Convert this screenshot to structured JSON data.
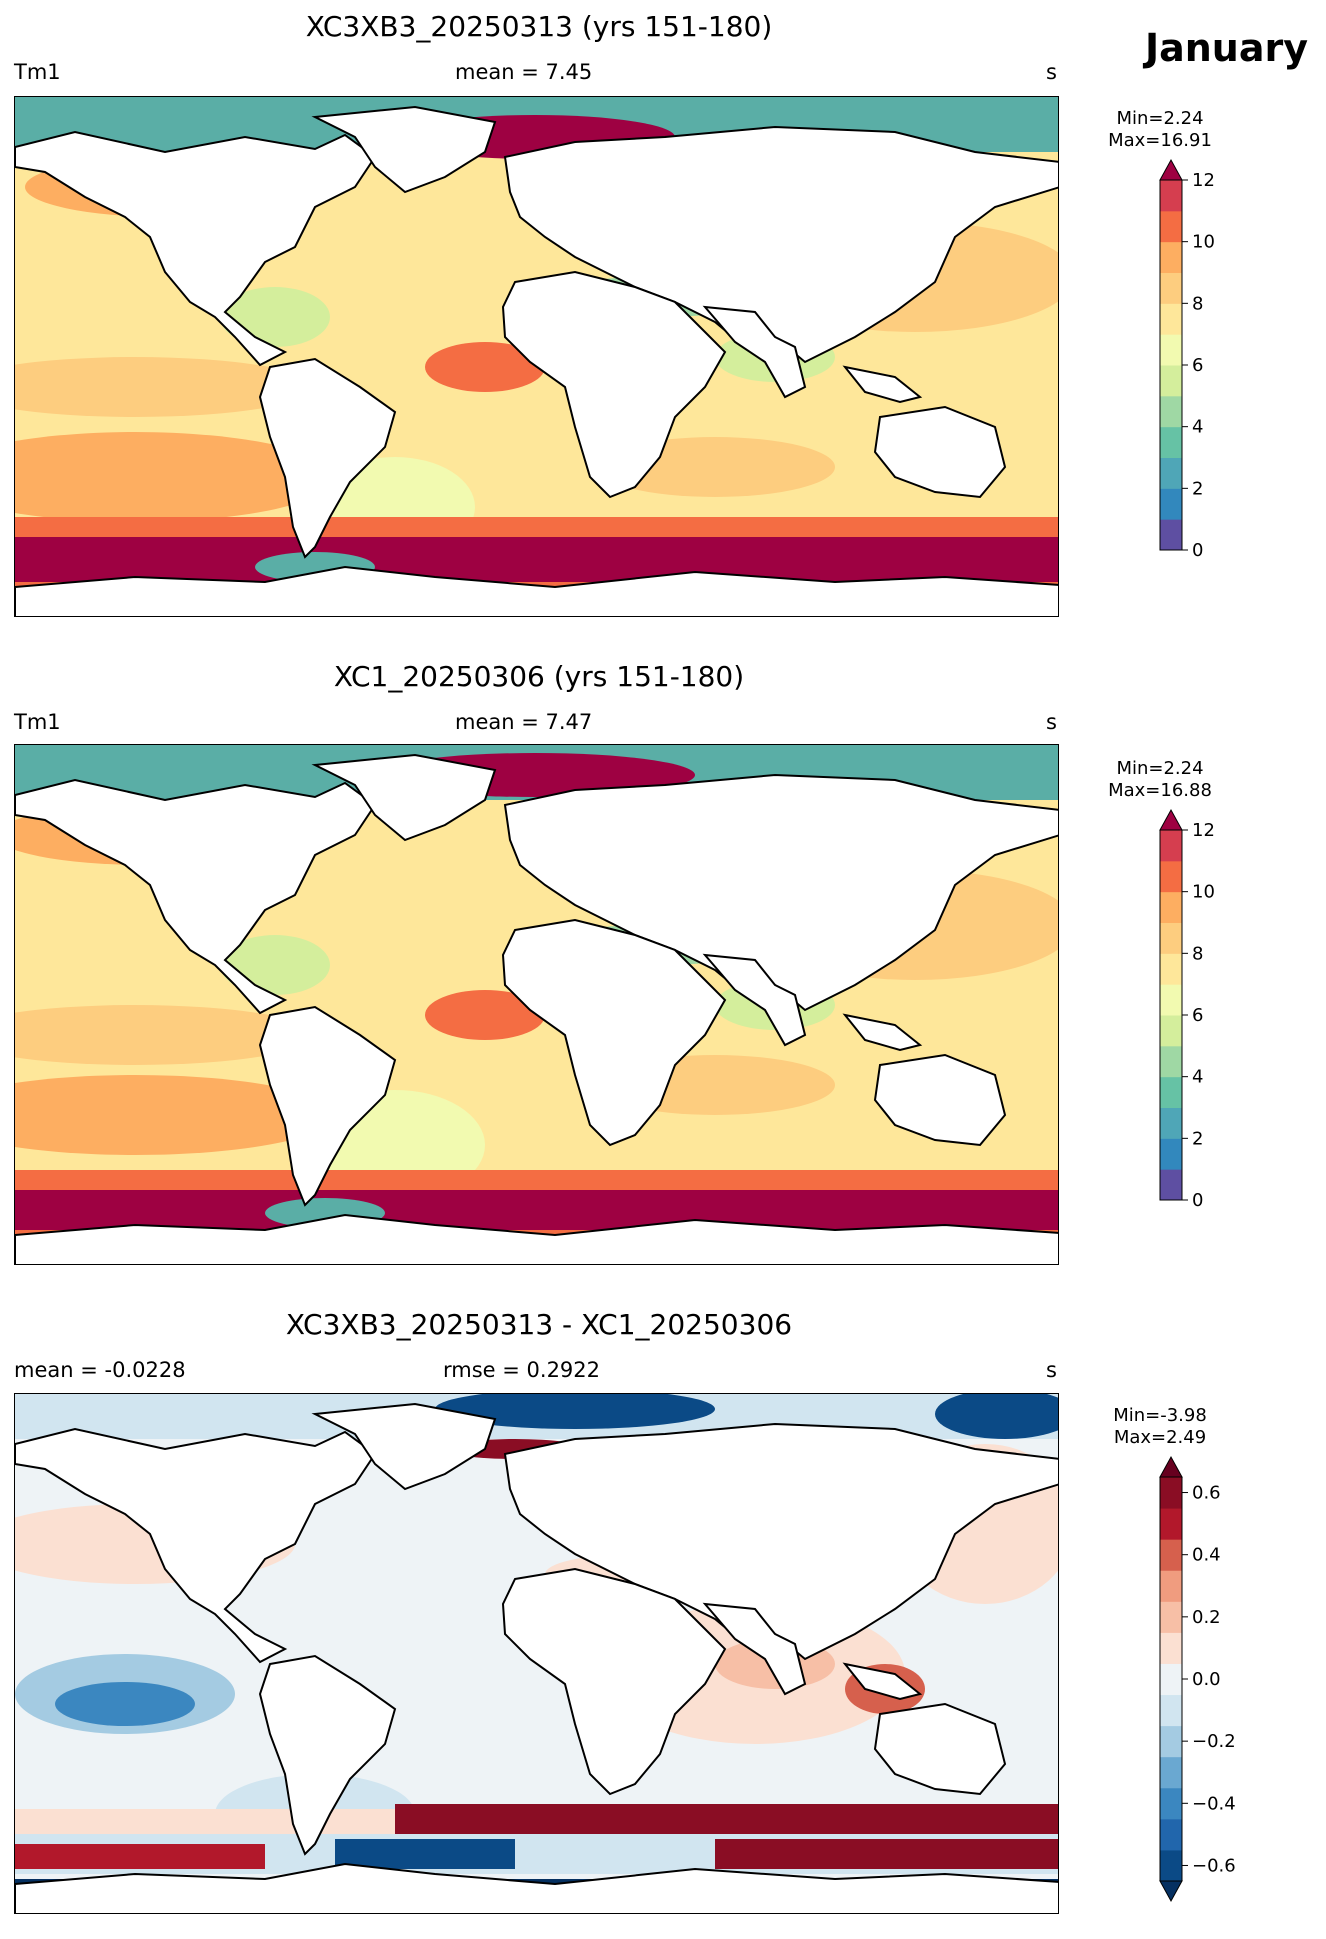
{
  "month": "January",
  "units": "s",
  "panels": [
    {
      "title": "XC3XB3_20250313 (yrs 151-180)",
      "left_label": "Tm1",
      "center_label": "mean = 7.45",
      "right_label": "s",
      "min_text": "Min=2.24",
      "max_text": "Max=16.91",
      "colorbar": {
        "type": "sequential",
        "ticks": [
          "0",
          "2",
          "4",
          "6",
          "8",
          "10",
          "12"
        ],
        "colors": [
          "#5e4fa2",
          "#3288bd",
          "#4fa6b7",
          "#66c2a5",
          "#9fd8a4",
          "#d4ee9c",
          "#f2fab0",
          "#fee79a",
          "#fdcd7f",
          "#fdae61",
          "#f46d43",
          "#d53e4f"
        ],
        "over_color": "#9e0142"
      }
    },
    {
      "title": "XC1_20250306 (yrs 151-180)",
      "left_label": "Tm1",
      "center_label": "mean = 7.47",
      "right_label": "s",
      "min_text": "Min=2.24",
      "max_text": "Max=16.88",
      "colorbar": {
        "type": "sequential",
        "ticks": [
          "0",
          "2",
          "4",
          "6",
          "8",
          "10",
          "12"
        ],
        "colors": [
          "#5e4fa2",
          "#3288bd",
          "#4fa6b7",
          "#66c2a5",
          "#9fd8a4",
          "#d4ee9c",
          "#f2fab0",
          "#fee79a",
          "#fdcd7f",
          "#fdae61",
          "#f46d43",
          "#d53e4f"
        ],
        "over_color": "#9e0142"
      }
    },
    {
      "title": "XC3XB3_20250313 - XC1_20250306",
      "left_label": "mean = -0.0228",
      "center_label": "rmse = 0.2922",
      "right_label": "s",
      "min_text": "Min=-3.98",
      "max_text": "Max=2.49",
      "colorbar": {
        "type": "diverging",
        "ticks": [
          "−0.6",
          "−0.4",
          "−0.2",
          "0.0",
          "0.2",
          "0.4",
          "0.6"
        ],
        "colors": [
          "#0b4a86",
          "#2166ac",
          "#3b87c0",
          "#6aa8d1",
          "#a4cbe2",
          "#d1e5f0",
          "#eef3f6",
          "#fbe0d2",
          "#f7bfa6",
          "#f09c7f",
          "#d6604d",
          "#b2182b",
          "#8a0d24"
        ],
        "over_color": "#67001f",
        "under_color": "#053061"
      }
    }
  ]
}
